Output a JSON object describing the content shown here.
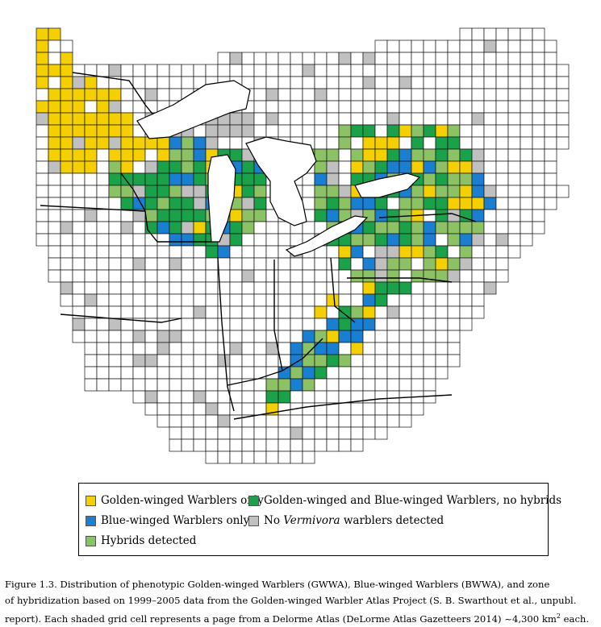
{
  "legend": {
    "items": [
      {
        "key": "golden_only",
        "label": "Golden-winged Warblers only",
        "color": "#f5d000"
      },
      {
        "key": "both_no_hybrids",
        "label": "Golden-winged and Blue-winged Warblers, no hybrids",
        "color": "#1aa14a"
      },
      {
        "key": "blue_only",
        "label": "Blue-winged Warblers only",
        "color": "#1a7fd0"
      },
      {
        "key": "none",
        "label_prefix": "No ",
        "label_italic": "Vermivora",
        "label_suffix": " warblers detected",
        "color": "#c0c0c0"
      },
      {
        "key": "hybrids",
        "label": "Hybrids detected",
        "color": "#8cc265"
      }
    ]
  },
  "caption": {
    "line1": "Figure 1.3.  Distribution of phenotypic Golden-winged Warblers (GWWA), Blue-winged Warblers (BWWA), and zone",
    "line2": "of hybridization based on 1999–2005 data from the Golden-winged Warbler Atlas Project (S. B. Swarthout et al., unpubl.",
    "line3_prefix": "report). Each shaded grid cell represents a page from a Delorme Atlas (DeLorme Atlas Gazetteers 2014) ~4,300 km",
    "line3_sup": "2",
    "line3_suffix": " each."
  },
  "map": {
    "colors": {
      "golden_only": "#f5d000",
      "both_no_hybrids": "#1aa14a",
      "blue_only": "#1a7fd0",
      "none": "#c0c0c0",
      "hybrids": "#8cc265",
      "blank": "#ffffff",
      "grid": "#111111"
    }
  }
}
